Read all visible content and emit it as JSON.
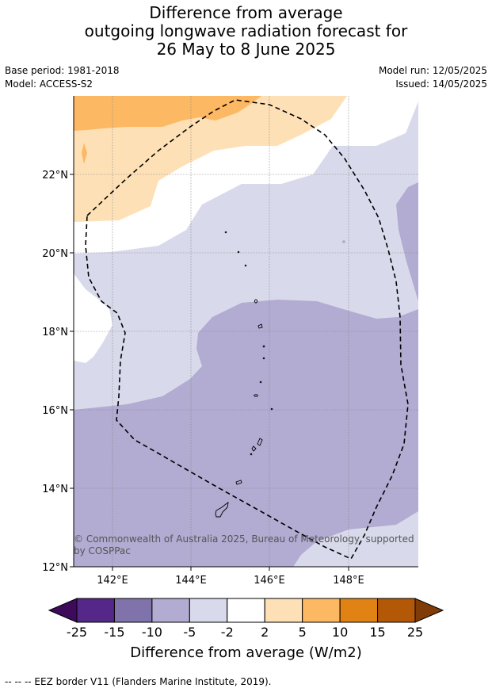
{
  "title_lines": [
    "Difference from average",
    "outgoing longwave radiation forecast for",
    "26 May to 8 June 2025"
  ],
  "meta": {
    "base_period": "Base period: 1981-2018",
    "model": "Model: ACCESS-S2",
    "model_run": "Model run: 12/05/2025",
    "issued": "Issued: 14/05/2025"
  },
  "map": {
    "y_ticks": [
      "22°N",
      "20°N",
      "18°N",
      "16°N",
      "14°N",
      "12°N"
    ],
    "x_ticks": [
      "142°E",
      "144°E",
      "146°E",
      "148°E"
    ],
    "copyright_line1": "© Commonwealth of Australia 2025, Bureau of Meteorology, supported",
    "copyright_line2": "by COSPPac"
  },
  "colorbar": {
    "ticks": [
      "-25",
      "-15",
      "-10",
      "-5",
      "-2",
      "2",
      "5",
      "10",
      "15",
      "25"
    ],
    "low_extension_color": "#3d0b5a",
    "high_extension_color": "#7f3b08",
    "colors": [
      "#542788",
      "#8073ac",
      "#b2abd2",
      "#d8daeb",
      "#ffffff",
      "#fee0b6",
      "#fdb863",
      "#e08214",
      "#b35806"
    ],
    "label": "Difference from average (W/m2)"
  },
  "footnote": "--  --  -- EEZ border V11 (Flanders Marine Institute, 2019)."
}
